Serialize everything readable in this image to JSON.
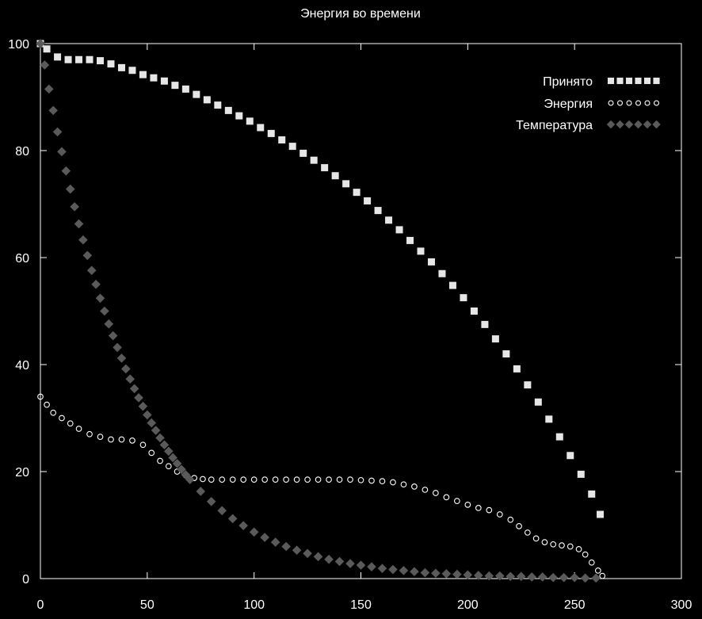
{
  "chart_data": {
    "type": "scatter",
    "title": "Энергия во времени",
    "xlabel": "",
    "ylabel": "",
    "xlim": [
      0,
      300
    ],
    "ylim": [
      0,
      100
    ],
    "x_ticks": [
      0,
      50,
      100,
      150,
      200,
      250,
      300
    ],
    "y_ticks": [
      0,
      20,
      40,
      60,
      80,
      100
    ],
    "grid": false,
    "legend_position": "top-right",
    "series": [
      {
        "name": "Принято",
        "marker": "square",
        "color": "#e6e6e6",
        "points": [
          [
            0,
            100
          ],
          [
            3,
            99
          ],
          [
            8,
            97.5
          ],
          [
            13,
            97
          ],
          [
            18,
            97
          ],
          [
            23,
            97
          ],
          [
            28,
            96.8
          ],
          [
            33,
            96.2
          ],
          [
            38,
            95.5
          ],
          [
            43,
            95
          ],
          [
            48,
            94.2
          ],
          [
            53,
            93.6
          ],
          [
            58,
            93
          ],
          [
            63,
            92.2
          ],
          [
            68,
            91.5
          ],
          [
            73,
            90.5
          ],
          [
            78,
            89.5
          ],
          [
            83,
            88.5
          ],
          [
            88,
            87.5
          ],
          [
            93,
            86.5
          ],
          [
            98,
            85.5
          ],
          [
            103,
            84.3
          ],
          [
            108,
            83.2
          ],
          [
            113,
            82
          ],
          [
            118,
            80.8
          ],
          [
            123,
            79.5
          ],
          [
            128,
            78.2
          ],
          [
            133,
            76.8
          ],
          [
            138,
            75.3
          ],
          [
            143,
            73.8
          ],
          [
            148,
            72.2
          ],
          [
            153,
            70.6
          ],
          [
            158,
            68.8
          ],
          [
            163,
            67
          ],
          [
            168,
            65.2
          ],
          [
            173,
            63.2
          ],
          [
            178,
            61.2
          ],
          [
            183,
            59.2
          ],
          [
            188,
            57
          ],
          [
            193,
            54.8
          ],
          [
            198,
            52.5
          ],
          [
            203,
            50
          ],
          [
            208,
            47.5
          ],
          [
            213,
            44.8
          ],
          [
            218,
            42
          ],
          [
            223,
            39.2
          ],
          [
            228,
            36.2
          ],
          [
            233,
            33
          ],
          [
            238,
            29.8
          ],
          [
            243,
            26.5
          ],
          [
            248,
            23
          ],
          [
            253,
            19.5
          ],
          [
            258,
            15.8
          ],
          [
            262,
            12
          ]
        ]
      },
      {
        "name": "Энергия",
        "marker": "circle",
        "color": "#ffffff",
        "points": [
          [
            0,
            34
          ],
          [
            3,
            32.5
          ],
          [
            6,
            31
          ],
          [
            10,
            30
          ],
          [
            14,
            29
          ],
          [
            18,
            28
          ],
          [
            23,
            27
          ],
          [
            28,
            26.5
          ],
          [
            33,
            26
          ],
          [
            38,
            26
          ],
          [
            43,
            25.8
          ],
          [
            48,
            25
          ],
          [
            52,
            23.5
          ],
          [
            56,
            22
          ],
          [
            60,
            21
          ],
          [
            64,
            20
          ],
          [
            68,
            19.3
          ],
          [
            72,
            18.8
          ],
          [
            76,
            18.6
          ],
          [
            80,
            18.5
          ],
          [
            85,
            18.5
          ],
          [
            90,
            18.5
          ],
          [
            95,
            18.5
          ],
          [
            100,
            18.5
          ],
          [
            105,
            18.5
          ],
          [
            110,
            18.5
          ],
          [
            115,
            18.5
          ],
          [
            120,
            18.5
          ],
          [
            125,
            18.5
          ],
          [
            130,
            18.5
          ],
          [
            135,
            18.5
          ],
          [
            140,
            18.5
          ],
          [
            145,
            18.5
          ],
          [
            150,
            18.4
          ],
          [
            155,
            18.3
          ],
          [
            160,
            18.2
          ],
          [
            165,
            18
          ],
          [
            170,
            17.6
          ],
          [
            175,
            17.2
          ],
          [
            180,
            16.6
          ],
          [
            185,
            16
          ],
          [
            190,
            15.2
          ],
          [
            195,
            14.5
          ],
          [
            200,
            13.8
          ],
          [
            205,
            13.2
          ],
          [
            210,
            12.8
          ],
          [
            215,
            12
          ],
          [
            220,
            11
          ],
          [
            224,
            9.8
          ],
          [
            228,
            8.6
          ],
          [
            232,
            7.5
          ],
          [
            236,
            6.8
          ],
          [
            240,
            6.4
          ],
          [
            244,
            6.2
          ],
          [
            248,
            6
          ],
          [
            252,
            5.5
          ],
          [
            255,
            4.5
          ],
          [
            258,
            3
          ],
          [
            261,
            1.5
          ],
          [
            263,
            0.5
          ]
        ]
      },
      {
        "name": "Температура",
        "marker": "diamond",
        "color": "#5a5a5a",
        "points": [
          [
            0,
            100
          ],
          [
            2,
            96
          ],
          [
            4,
            91.5
          ],
          [
            6,
            87.5
          ],
          [
            8,
            83.5
          ],
          [
            10,
            79.8
          ],
          [
            12,
            76.2
          ],
          [
            14,
            72.8
          ],
          [
            16,
            69.5
          ],
          [
            18,
            66.3
          ],
          [
            20,
            63.3
          ],
          [
            22,
            60.4
          ],
          [
            24,
            57.6
          ],
          [
            26,
            55
          ],
          [
            28,
            52.4
          ],
          [
            30,
            50
          ],
          [
            32,
            47.6
          ],
          [
            34,
            45.4
          ],
          [
            36,
            43.2
          ],
          [
            38,
            41.2
          ],
          [
            40,
            39.2
          ],
          [
            42,
            37.3
          ],
          [
            44,
            35.5
          ],
          [
            46,
            33.8
          ],
          [
            48,
            32.2
          ],
          [
            50,
            30.6
          ],
          [
            52,
            29.1
          ],
          [
            54,
            27.7
          ],
          [
            56,
            26.3
          ],
          [
            58,
            25
          ],
          [
            60,
            23.8
          ],
          [
            62,
            22.6
          ],
          [
            64,
            21.5
          ],
          [
            66,
            20.4
          ],
          [
            68,
            19.4
          ],
          [
            70,
            18.5
          ],
          [
            75,
            16.3
          ],
          [
            80,
            14.4
          ],
          [
            85,
            12.7
          ],
          [
            90,
            11.2
          ],
          [
            95,
            9.9
          ],
          [
            100,
            8.7
          ],
          [
            105,
            7.7
          ],
          [
            110,
            6.8
          ],
          [
            115,
            6
          ],
          [
            120,
            5.3
          ],
          [
            125,
            4.7
          ],
          [
            130,
            4.1
          ],
          [
            135,
            3.6
          ],
          [
            140,
            3.2
          ],
          [
            145,
            2.8
          ],
          [
            150,
            2.5
          ],
          [
            155,
            2.2
          ],
          [
            160,
            1.9
          ],
          [
            165,
            1.7
          ],
          [
            170,
            1.5
          ],
          [
            175,
            1.3
          ],
          [
            180,
            1.1
          ],
          [
            185,
            1
          ],
          [
            190,
            0.9
          ],
          [
            195,
            0.8
          ],
          [
            200,
            0.7
          ],
          [
            205,
            0.6
          ],
          [
            210,
            0.5
          ],
          [
            215,
            0.5
          ],
          [
            220,
            0.4
          ],
          [
            225,
            0.4
          ],
          [
            230,
            0.3
          ],
          [
            235,
            0.3
          ],
          [
            240,
            0.2
          ],
          [
            245,
            0.2
          ],
          [
            250,
            0.2
          ],
          [
            255,
            0.1
          ],
          [
            260,
            0.1
          ]
        ]
      }
    ]
  }
}
